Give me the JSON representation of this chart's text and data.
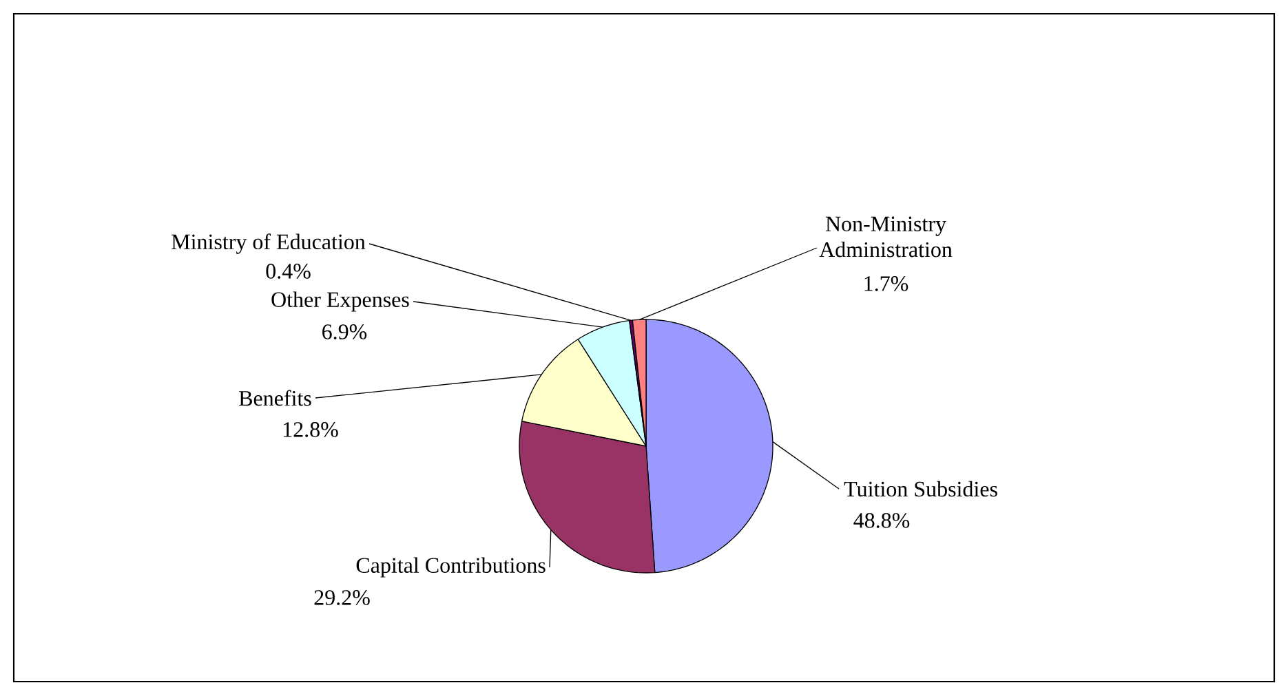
{
  "chart_data": {
    "type": "pie",
    "categories": [
      "Tuition Subsidies",
      "Capital Contributions",
      "Benefits",
      "Other Expenses",
      "Ministry of Education",
      "Non-Ministry Administration"
    ],
    "values": [
      48.8,
      29.2,
      12.8,
      6.9,
      0.4,
      1.7
    ],
    "value_labels": [
      "48.8%",
      "29.2%",
      "12.8%",
      "6.9%",
      "0.4%",
      "1.7%"
    ],
    "colors": [
      "#9999ff",
      "#993366",
      "#ffffcc",
      "#ccffff",
      "#660066",
      "#ff8080"
    ]
  }
}
